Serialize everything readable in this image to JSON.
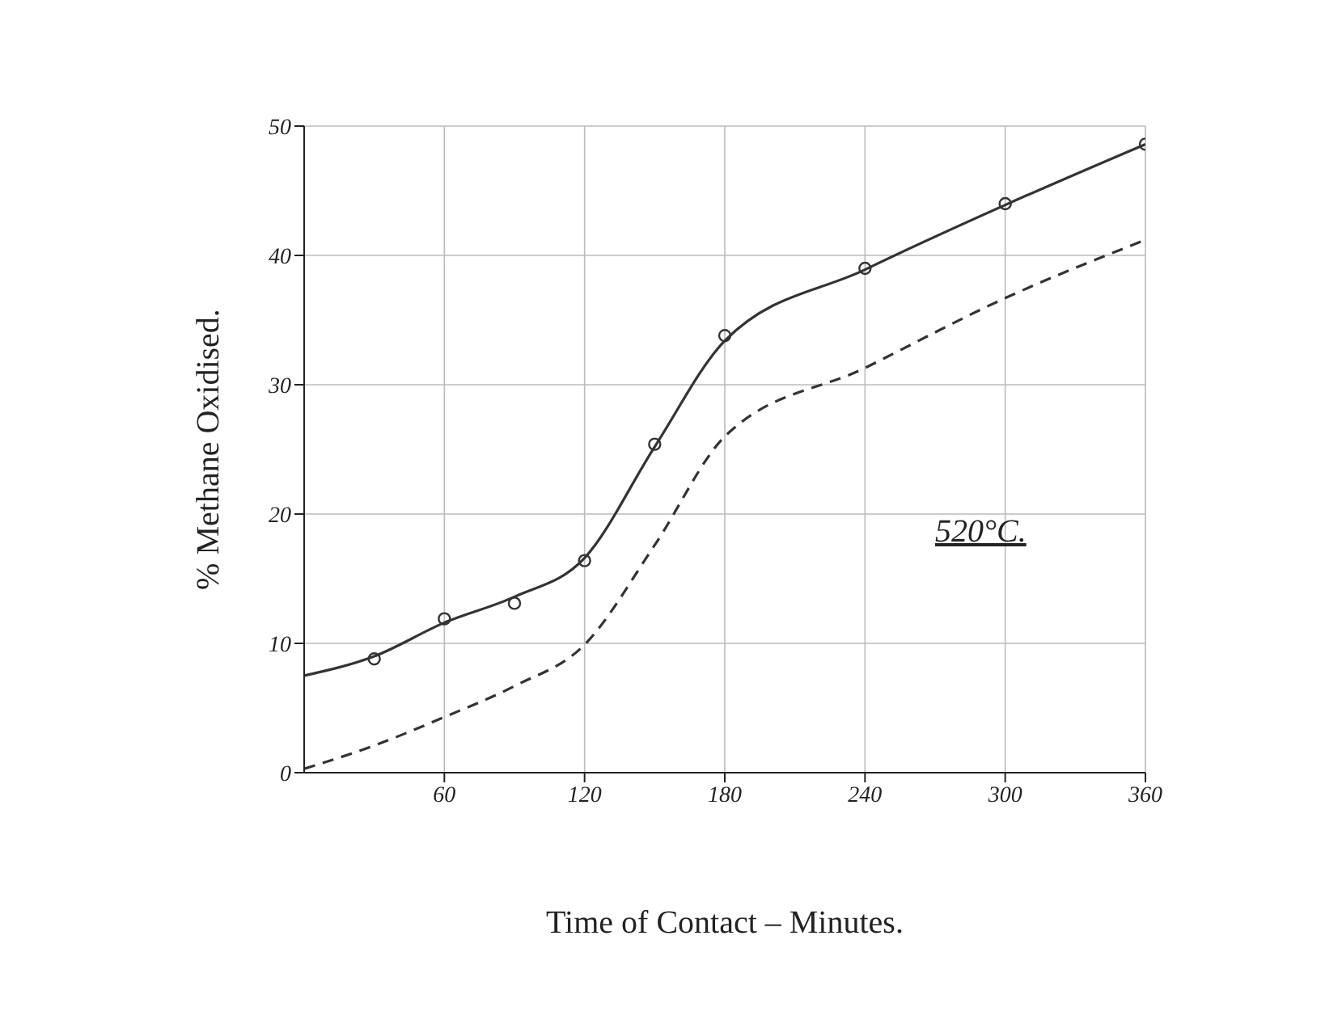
{
  "chart_data": {
    "type": "line",
    "xlabel": "Time of Contact – Minutes.",
    "ylabel": "% Methane Oxidised.",
    "xlim": [
      0,
      360
    ],
    "xticks": [
      60,
      120,
      180,
      240,
      300,
      360
    ],
    "ylim": [
      0,
      50
    ],
    "yticks": [
      0,
      10,
      20,
      30,
      40,
      50
    ],
    "grid": true,
    "annotations": [
      "520°C."
    ],
    "series": [
      {
        "type": "scatter",
        "color": "#333333",
        "marker": "circle",
        "x": [
          30,
          60,
          90,
          120,
          150,
          180,
          240,
          300,
          360
        ],
        "values": [
          8.8,
          11.9,
          13.1,
          16.4,
          25.4,
          33.8,
          39,
          44,
          48.6
        ]
      },
      {
        "color": "#333333",
        "line_style": "solid",
        "x": [
          0,
          30,
          60,
          90,
          120,
          150,
          180,
          240,
          300,
          360
        ],
        "values": [
          7.5,
          9,
          11.6,
          13.6,
          16.6,
          25.2,
          33.4,
          38.9,
          43.9,
          48.6
        ]
      },
      {
        "color": "#333333",
        "line_style": "dashed",
        "x": [
          0,
          30,
          60,
          90,
          120,
          150,
          180,
          240,
          300,
          360
        ],
        "values": [
          0.3,
          2.1,
          4.3,
          6.7,
          9.9,
          17.6,
          26,
          31.3,
          36.7,
          41.2
        ]
      }
    ]
  }
}
